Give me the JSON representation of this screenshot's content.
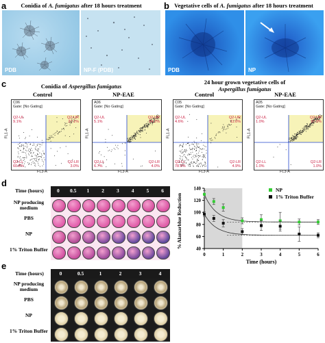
{
  "panels": {
    "a": {
      "label": "a",
      "title": "Conidia of A. fumigatus after 18 hours treatment",
      "title_pre": "Conidia of ",
      "title_em": "A. fumigatus",
      "title_post": " after 18 hours treatment",
      "left_tag": "PDB",
      "right_tag": "NP-F (PDB)"
    },
    "b": {
      "label": "b",
      "title_pre": "Vegetative cells of ",
      "title_em": "A. fumigatus",
      "title_post": " after 18 hours treatment",
      "left_tag": "PDB",
      "right_tag": "NP"
    },
    "c": {
      "label": "c",
      "left_title_pre": "Conidia of ",
      "left_title_em": "Aspergillus fumigatus",
      "right_title_line1": "24 hour grown vegetative cells of",
      "right_title_em": "Aspergillus fumigatus",
      "plots": [
        {
          "heading": "Control",
          "sample": "C06",
          "gate": "Gate: [No Gating]",
          "ul_name": "Q2-UL",
          "ul_val": "9.1%",
          "ur_name": "Q2-UR",
          "ur_val": "27.1%",
          "ll_name": "Q2-LL",
          "ll_val": "60.8%",
          "lr_name": "Q2-LR",
          "lr_val": "3.0%",
          "xlabel": "FL3-A",
          "ylabel": "FL1-A"
        },
        {
          "heading": "NP-EAE",
          "sample": "A06",
          "gate": "Gate: [No Gating]",
          "ul_name": "Q2-UL",
          "ul_val": "5.1%",
          "ur_name": "Q2-UR",
          "ur_val": "84.2%",
          "ll_name": "Q2-LL",
          "ll_val": "6.7%",
          "lr_name": "Q2-LR",
          "lr_val": "4.0%",
          "xlabel": "FL3-A",
          "ylabel": "FL1-A"
        },
        {
          "heading": "Control",
          "sample": "C05",
          "gate": "Gate: [No Gating]",
          "ul_name": "Q2-UL",
          "ul_val": "4.6%",
          "ur_name": "Q2-UR",
          "ur_val": "11.6%",
          "ll_name": "Q2-LL",
          "ll_val": "78.9%",
          "lr_name": "Q2-LR",
          "lr_val": "4.9%",
          "xlabel": "FL3-A",
          "ylabel": "FL1-A"
        },
        {
          "heading": "NP-EAE",
          "sample": "A05",
          "gate": "Gate: [No Gating]",
          "ul_name": "Q2-UL",
          "ul_val": "1.0%",
          "ur_name": "Q2-UR",
          "ur_val": "97.0%",
          "ll_name": "Q2-LL",
          "ll_val": "1.0%",
          "lr_name": "Q2-LR",
          "lr_val": "1.0%",
          "xlabel": "FL3-A",
          "ylabel": "FL1-A"
        }
      ]
    },
    "d": {
      "label": "d",
      "header_label": "Time (hours)",
      "times": [
        "0",
        "0.5",
        "1",
        "2",
        "3",
        "4",
        "5",
        "6"
      ],
      "rows": [
        {
          "label": "NP producing medium",
          "colors": [
            "#d9509f",
            "#dd4fa3",
            "#db52a1",
            "#d94f9e",
            "#db50a2",
            "#dc4fa1",
            "#d84e9d",
            "#da4fa0"
          ]
        },
        {
          "label": "PBS",
          "colors": [
            "#e05aa8",
            "#e25cab",
            "#e05aa9",
            "#df5ba7",
            "#e15ba9",
            "#df59a6",
            "#e05aa8",
            "#de58a5"
          ]
        },
        {
          "label": "NP",
          "colors": [
            "#c94a96",
            "#b04a94",
            "#9a4b9a",
            "#7d4b9e",
            "#6c4aa0",
            "#63489f",
            "#5e489e",
            "#5b479c"
          ]
        },
        {
          "label": "1% Triton Buffer",
          "colors": [
            "#d24fa0",
            "#c84d9d",
            "#b54b9c",
            "#9e4a9c",
            "#8a499d",
            "#7a489d",
            "#6e479c",
            "#66469b"
          ]
        }
      ]
    },
    "e": {
      "label": "e",
      "header_label": "Time (hours)",
      "times": [
        "0",
        "0.5",
        "1",
        "2",
        "3",
        "4"
      ],
      "rows": [
        {
          "label": "NP producing medium",
          "kind": "growth"
        },
        {
          "label": "PBS",
          "kind": "growth"
        },
        {
          "label": "NP",
          "kind": "clear"
        },
        {
          "label": "1% Triton Buffer",
          "kind": "clear"
        }
      ]
    }
  },
  "chart_data": {
    "type": "line",
    "xlabel": "Time (hours)",
    "ylabel": "% Alamarblue Reduction",
    "xlim": [
      0,
      6
    ],
    "ylim": [
      40,
      140
    ],
    "xticks": [
      "0",
      "1",
      "2",
      "3",
      "4",
      "5",
      "6"
    ],
    "yticks": [
      "40",
      "60",
      "80",
      "100",
      "120",
      "140"
    ],
    "shaded_region": [
      0,
      2
    ],
    "legend_position": "top-right",
    "series": [
      {
        "name": "NP",
        "color": "#33cc33",
        "marker": "square",
        "x": [
          0,
          0.5,
          1,
          2,
          3,
          4,
          5,
          6
        ],
        "y": [
          130,
          118,
          108,
          86,
          88,
          86,
          84,
          84
        ],
        "err": [
          6,
          5,
          6,
          5,
          8,
          14,
          5,
          4
        ]
      },
      {
        "name": "1% Triton Buffer",
        "color": "#111111",
        "marker": "square",
        "x": [
          0,
          0.5,
          1,
          2,
          3,
          4,
          5,
          6
        ],
        "y": [
          97,
          90,
          82,
          68,
          78,
          77,
          64,
          62
        ],
        "err": [
          4,
          5,
          6,
          5,
          8,
          8,
          12,
          4
        ]
      }
    ]
  }
}
